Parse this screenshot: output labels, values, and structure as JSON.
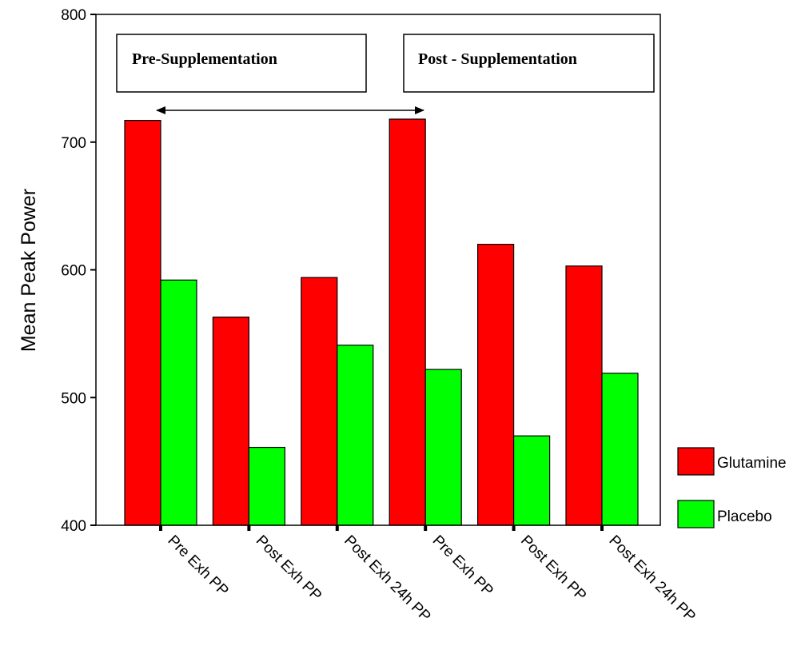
{
  "chart_data": {
    "type": "bar",
    "categories": [
      "Pre Exh PP",
      "Post Exh PP",
      "Post Exh 24h PP",
      "Pre Exh PP",
      "Post Exh PP",
      "Post Exh 24h PP"
    ],
    "series": [
      {
        "name": "Glutamine",
        "color": "#ff0000",
        "values": [
          717,
          563,
          594,
          718,
          620,
          603
        ]
      },
      {
        "name": "Placebo",
        "color": "#00ff00",
        "values": [
          592,
          461,
          541,
          522,
          470,
          519
        ]
      }
    ],
    "xlabel": "",
    "ylabel": "Mean Peak Power",
    "ylim": [
      400,
      800
    ],
    "yticks": [
      400,
      500,
      600,
      700,
      800
    ],
    "grid": false,
    "legend_position": "right",
    "annotations": {
      "pre_box": "Pre-Supplementation",
      "post_box": "Post - Supplementation",
      "arrow": "double-headed arrow between first and fourth Glutamine bars"
    }
  }
}
